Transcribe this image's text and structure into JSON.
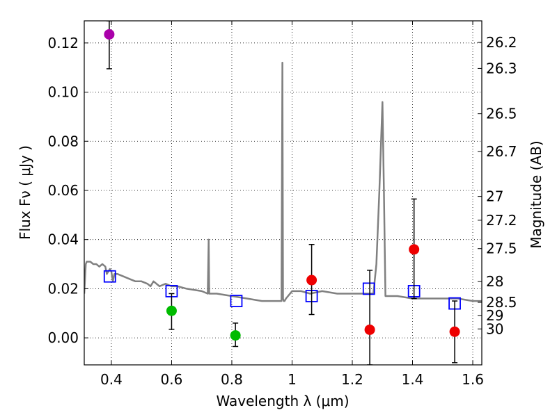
{
  "chart_data": {
    "type": "scatter",
    "xlabel": "Wavelength  λ (μm)",
    "ylabel": "Flux  Fν  ( μJy )",
    "y2label": "Magnitude (AB)",
    "xlim": [
      0.31,
      1.63
    ],
    "ylim": [
      -0.011,
      0.129
    ],
    "grid": true,
    "x_ticks": [
      0.4,
      0.6,
      0.8,
      1.0,
      1.2,
      1.4,
      1.6
    ],
    "x_tick_labels": [
      "0.4",
      "0.6",
      "0.8",
      "1",
      "1.2",
      "1.4",
      "1.6"
    ],
    "y_ticks": [
      0.0,
      0.02,
      0.04,
      0.06,
      0.08,
      0.1,
      0.12
    ],
    "y_tick_labels": [
      "0.00",
      "0.02",
      "0.04",
      "0.06",
      "0.08",
      "0.10",
      "0.12"
    ],
    "magnitude_ticks": [
      26.2,
      26.3,
      26.5,
      26.7,
      27,
      27.2,
      27.5,
      28,
      28.5,
      29,
      30
    ],
    "magnitude_tick_labels": [
      "26.2",
      "26.3",
      "26.5",
      "26.7",
      "27",
      "27.2",
      "27.5",
      "28",
      "28.5",
      "29",
      "30"
    ],
    "series": [
      {
        "name": "model spectrum",
        "kind": "line",
        "color": "#808080",
        "x": [
          0.31,
          0.315,
          0.318,
          0.322,
          0.33,
          0.34,
          0.35,
          0.36,
          0.37,
          0.38,
          0.385,
          0.39,
          0.395,
          0.4,
          0.405,
          0.41,
          0.42,
          0.44,
          0.46,
          0.48,
          0.5,
          0.52,
          0.53,
          0.54,
          0.56,
          0.58,
          0.6,
          0.62,
          0.65,
          0.7,
          0.72,
          0.723,
          0.725,
          0.727,
          0.73,
          0.75,
          0.8,
          0.85,
          0.9,
          0.95,
          0.965,
          0.968,
          0.97,
          0.972,
          0.975,
          0.98,
          1.0,
          1.03,
          1.06,
          1.1,
          1.15,
          1.2,
          1.25,
          1.27,
          1.28,
          1.29,
          1.3,
          1.305,
          1.31,
          1.32,
          1.35,
          1.4,
          1.45,
          1.5,
          1.55,
          1.6,
          1.63
        ],
        "y": [
          0.018,
          0.03,
          0.031,
          0.031,
          0.031,
          0.03,
          0.03,
          0.029,
          0.03,
          0.029,
          0.026,
          0.027,
          0.028,
          0.027,
          0.023,
          0.026,
          0.026,
          0.025,
          0.024,
          0.023,
          0.023,
          0.022,
          0.021,
          0.023,
          0.021,
          0.022,
          0.021,
          0.021,
          0.02,
          0.019,
          0.018,
          0.04,
          0.018,
          0.018,
          0.018,
          0.018,
          0.017,
          0.016,
          0.015,
          0.015,
          0.015,
          0.112,
          0.016,
          0.015,
          0.015,
          0.016,
          0.019,
          0.019,
          0.018,
          0.019,
          0.018,
          0.018,
          0.018,
          0.018,
          0.03,
          0.06,
          0.096,
          0.06,
          0.017,
          0.017,
          0.017,
          0.016,
          0.016,
          0.016,
          0.016,
          0.015,
          0.015
        ]
      },
      {
        "name": "blue squares",
        "kind": "marker",
        "marker": "square",
        "color": "#0000ff",
        "x": [
          0.395,
          0.6,
          0.815,
          1.065,
          1.255,
          1.405,
          1.54
        ],
        "y": [
          0.025,
          0.019,
          0.015,
          0.017,
          0.02,
          0.019,
          0.014
        ]
      },
      {
        "name": "purple point",
        "kind": "marker",
        "marker": "circle",
        "color": "#aa00aa",
        "x": [
          0.393
        ],
        "y": [
          0.1235
        ],
        "err_low": [
          0.1095
        ],
        "err_high": [
          0.129
        ]
      },
      {
        "name": "green points",
        "kind": "marker",
        "marker": "circle",
        "color": "#00bb00",
        "x": [
          0.6,
          0.812
        ],
        "y": [
          0.011,
          0.001
        ],
        "err_low": [
          0.0035,
          -0.0035
        ],
        "err_high": [
          0.018,
          0.006
        ]
      },
      {
        "name": "red points",
        "kind": "marker",
        "marker": "circle",
        "color": "#ee0000",
        "x": [
          1.065,
          1.258,
          1.405,
          1.54
        ],
        "y": [
          0.0235,
          0.0033,
          0.036,
          0.0025
        ],
        "err_low": [
          0.0095,
          -0.011,
          0.016,
          -0.0101
        ],
        "err_high": [
          0.038,
          0.0275,
          0.0565,
          0.015
        ]
      }
    ]
  }
}
